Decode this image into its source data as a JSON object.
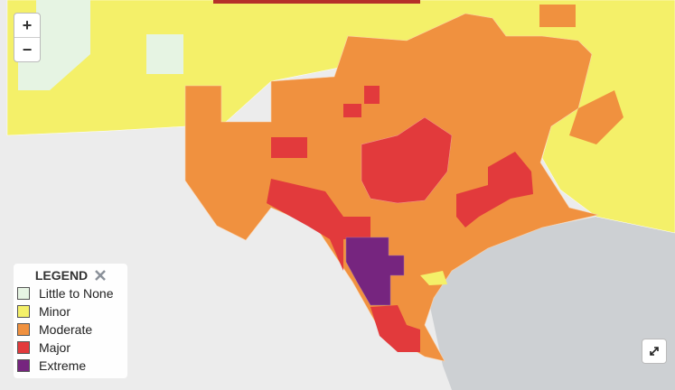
{
  "zoom": {
    "in": "+",
    "out": "−"
  },
  "legend": {
    "title": "LEGEND",
    "items": [
      {
        "label": "Little to None",
        "color": "#e6f4e3"
      },
      {
        "label": "Minor",
        "color": "#f4f069"
      },
      {
        "label": "Moderate",
        "color": "#f0913f"
      },
      {
        "label": "Major",
        "color": "#e23a3c"
      },
      {
        "label": "Extreme",
        "color": "#76257f"
      }
    ]
  }
}
